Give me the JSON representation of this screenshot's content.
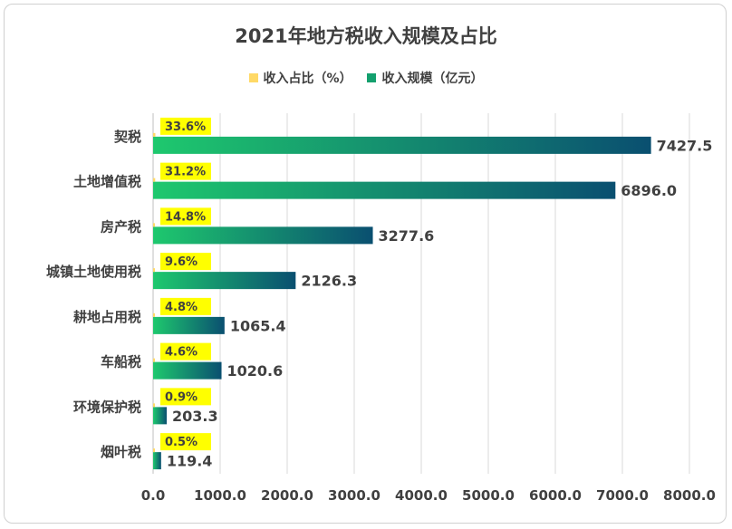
{
  "chart_data": {
    "type": "bar",
    "title": "2021年地方税收入规模及占比",
    "categories": [
      "契税",
      "土地增值税",
      "房产税",
      "城镇土地使用税",
      "耕地占用税",
      "车船税",
      "环境保护税",
      "烟叶税"
    ],
    "series": [
      {
        "name": "收入占比（%）",
        "values": [
          33.6,
          31.2,
          14.8,
          9.6,
          4.8,
          4.6,
          0.9,
          0.5
        ],
        "labels": [
          "33.6%",
          "31.2%",
          "14.8%",
          "9.6%",
          "4.8%",
          "4.6%",
          "0.9%",
          "0.5%"
        ],
        "color": "#ffd966"
      },
      {
        "name": "收入规模（亿元）",
        "values": [
          7427.5,
          6896.0,
          3277.6,
          2126.3,
          1065.4,
          1020.6,
          203.3,
          119.4
        ],
        "labels": [
          "7427.5",
          "6896.0",
          "3277.6",
          "2126.3",
          "1065.4",
          "1020.6",
          "203.3",
          "119.4"
        ],
        "color": "#14a06e",
        "gradient": [
          "#1ec86e",
          "#0a4f70"
        ]
      }
    ],
    "xlim": [
      0,
      8000
    ],
    "xticks": [
      "0.0",
      "1000.0",
      "2000.0",
      "3000.0",
      "4000.0",
      "5000.0",
      "6000.0",
      "7000.0",
      "8000.0"
    ],
    "grid": true,
    "legend_position": "top",
    "label_highlight": "#ffff00"
  }
}
